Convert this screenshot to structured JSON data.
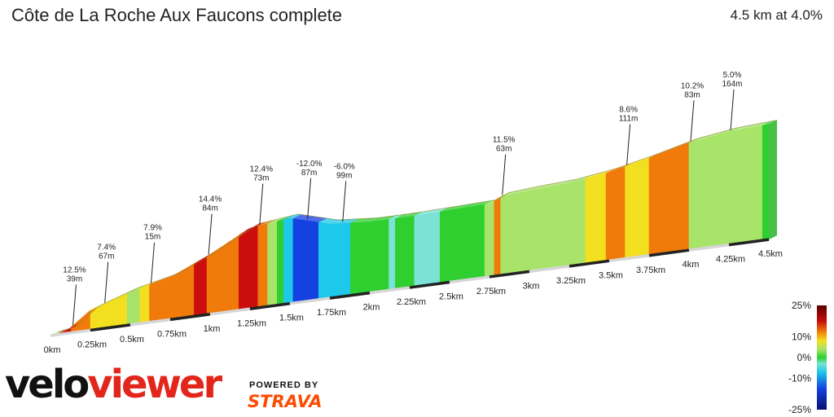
{
  "header": {
    "title": "Côte de La Roche Aux Faucons complete",
    "summary": "4.5 km at 4.0%"
  },
  "branding": {
    "logo_part1": "velo",
    "logo_part2": "viewer",
    "powered_by": "POWERED BY",
    "strava": "STRAVA",
    "logo_icon": "veloviewer-logo-icon",
    "strava_icon": "strava-logo-icon"
  },
  "colors": {
    "climb_very_steep": "#cc0d0d",
    "climb_steep": "#f07a0a",
    "climb_moderate": "#f2e020",
    "climb_gentle": "#a8e36a",
    "flat": "#2fcf2f",
    "descent_gentle": "#7ae3d6",
    "descent": "#1ec8e8",
    "descent_steep": "#1440e0"
  },
  "chart_data": {
    "type": "area",
    "xlabel": "",
    "ylabel": "",
    "distance_km": [
      0.0,
      0.1,
      0.25,
      0.5,
      0.75,
      1.0,
      1.25,
      1.5,
      1.75,
      2.0,
      2.25,
      2.5,
      2.75,
      2.82,
      3.0,
      3.25,
      3.5,
      3.75,
      4.0,
      4.25,
      4.5
    ],
    "elevation_m": [
      0,
      2,
      18,
      30,
      38,
      54,
      73,
      77,
      67,
      64,
      64,
      65,
      66,
      71,
      73,
      75,
      80,
      88,
      97,
      102,
      104
    ],
    "x_ticks": [
      "0km",
      "0.25km",
      "0.5km",
      "0.75km",
      "1km",
      "1.25km",
      "1.5km",
      "1.75km",
      "2km",
      "2.25km",
      "2.5km",
      "2.75km",
      "3km",
      "3.25km",
      "3.5km",
      "3.75km",
      "4km",
      "4.25km",
      "4.5km"
    ],
    "x_tick_values": [
      0,
      0.25,
      0.5,
      0.75,
      1.0,
      1.25,
      1.5,
      1.75,
      2.0,
      2.25,
      2.5,
      2.75,
      3.0,
      3.25,
      3.5,
      3.75,
      4.0,
      4.25,
      4.5
    ],
    "xlim": [
      0,
      4.5
    ],
    "gradient_segments": [
      {
        "from": 0.0,
        "to": 0.05,
        "grade": 3
      },
      {
        "from": 0.05,
        "to": 0.13,
        "grade": 12.5
      },
      {
        "from": 0.13,
        "to": 0.18,
        "grade": 10
      },
      {
        "from": 0.18,
        "to": 0.25,
        "grade": 8
      },
      {
        "from": 0.25,
        "to": 0.33,
        "grade": 7.4
      },
      {
        "from": 0.33,
        "to": 0.48,
        "grade": 6.5
      },
      {
        "from": 0.48,
        "to": 0.56,
        "grade": 4.5
      },
      {
        "from": 0.56,
        "to": 0.62,
        "grade": 7.9
      },
      {
        "from": 0.62,
        "to": 0.75,
        "grade": 8.5
      },
      {
        "from": 0.75,
        "to": 0.9,
        "grade": 9.5
      },
      {
        "from": 0.9,
        "to": 0.98,
        "grade": 14.4
      },
      {
        "from": 0.98,
        "to": 1.06,
        "grade": 8.5
      },
      {
        "from": 1.06,
        "to": 1.18,
        "grade": 9.5
      },
      {
        "from": 1.18,
        "to": 1.3,
        "grade": 12.4
      },
      {
        "from": 1.3,
        "to": 1.36,
        "grade": 8
      },
      {
        "from": 1.36,
        "to": 1.42,
        "grade": 5
      },
      {
        "from": 1.42,
        "to": 1.46,
        "grade": 1
      },
      {
        "from": 1.46,
        "to": 1.52,
        "grade": -7
      },
      {
        "from": 1.52,
        "to": 1.6,
        "grade": -12
      },
      {
        "from": 1.6,
        "to": 1.68,
        "grade": -9
      },
      {
        "from": 1.68,
        "to": 1.82,
        "grade": -6
      },
      {
        "from": 1.82,
        "to": 1.88,
        "grade": -4
      },
      {
        "from": 1.88,
        "to": 2.02,
        "grade": 0.5
      },
      {
        "from": 2.02,
        "to": 2.12,
        "grade": 1
      },
      {
        "from": 2.12,
        "to": 2.16,
        "grade": -1.5
      },
      {
        "from": 2.16,
        "to": 2.28,
        "grade": 0.5
      },
      {
        "from": 2.28,
        "to": 2.36,
        "grade": -2
      },
      {
        "from": 2.36,
        "to": 2.44,
        "grade": -1.5
      },
      {
        "from": 2.44,
        "to": 2.6,
        "grade": 0.5
      },
      {
        "from": 2.6,
        "to": 2.72,
        "grade": 1
      },
      {
        "from": 2.72,
        "to": 2.78,
        "grade": 3
      },
      {
        "from": 2.78,
        "to": 2.82,
        "grade": 11.5
      },
      {
        "from": 2.82,
        "to": 2.88,
        "grade": 5
      },
      {
        "from": 2.88,
        "to": 3.0,
        "grade": 3.5
      },
      {
        "from": 3.0,
        "to": 3.12,
        "grade": 4.5
      },
      {
        "from": 3.12,
        "to": 3.25,
        "grade": 3.5
      },
      {
        "from": 3.25,
        "to": 3.35,
        "grade": 4.5
      },
      {
        "from": 3.35,
        "to": 3.48,
        "grade": 6
      },
      {
        "from": 3.48,
        "to": 3.6,
        "grade": 8.6
      },
      {
        "from": 3.6,
        "to": 3.75,
        "grade": 7
      },
      {
        "from": 3.75,
        "to": 3.88,
        "grade": 9
      },
      {
        "from": 3.88,
        "to": 4.0,
        "grade": 10.2
      },
      {
        "from": 4.0,
        "to": 4.25,
        "grade": 5
      },
      {
        "from": 4.25,
        "to": 4.4,
        "grade": 4.5
      },
      {
        "from": 4.4,
        "to": 4.46,
        "grade": 3.5
      },
      {
        "from": 4.46,
        "to": 4.5,
        "grade": 2
      }
    ],
    "annotations": [
      {
        "grade": "12.5%",
        "length": "39m",
        "at_km": 0.13
      },
      {
        "grade": "7.4%",
        "length": "67m",
        "at_km": 0.33
      },
      {
        "grade": "7.9%",
        "length": "15m",
        "at_km": 0.62
      },
      {
        "grade": "14.4%",
        "length": "84m",
        "at_km": 0.98
      },
      {
        "grade": "12.4%",
        "length": "73m",
        "at_km": 1.3
      },
      {
        "grade": "-12.0%",
        "length": "87m",
        "at_km": 1.6
      },
      {
        "grade": "-6.0%",
        "length": "99m",
        "at_km": 1.82
      },
      {
        "grade": "11.5%",
        "length": "63m",
        "at_km": 2.82
      },
      {
        "grade": "8.6%",
        "length": "111m",
        "at_km": 3.6
      },
      {
        "grade": "10.2%",
        "length": "83m",
        "at_km": 4.0
      },
      {
        "grade": "5.0%",
        "length": "164m",
        "at_km": 4.25
      }
    ],
    "legend": {
      "placement": "bottom-right",
      "ticks": [
        "25%",
        "10%",
        "0%",
        "-10%",
        "-25%"
      ],
      "tick_values": [
        25,
        10,
        0,
        -10,
        -25
      ],
      "range": [
        -25,
        25
      ]
    }
  }
}
